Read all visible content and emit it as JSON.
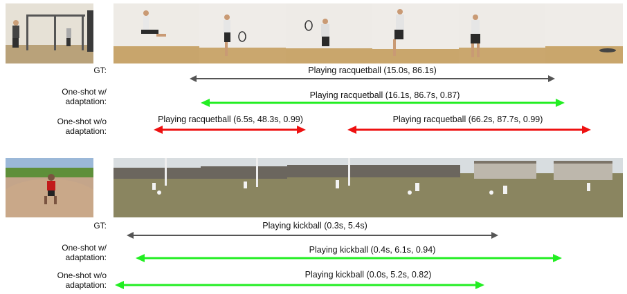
{
  "examples": [
    {
      "rows": [
        {
          "label": "GT:",
          "segments": [
            {
              "text": "Playing racquetball (15.0s, 86.1s)",
              "color": "#555555"
            }
          ]
        },
        {
          "label": "One-shot w/\nadaptation:",
          "segments": [
            {
              "text": "Playing racquetball (16.1s, 86.7s, 0.87)",
              "color": "#22ee22"
            }
          ]
        },
        {
          "label": "One-shot w/o\nadaptation:",
          "segments": [
            {
              "text": "Playing racquetball (6.5s, 48.3s, 0.99)",
              "color": "#ee1111"
            },
            {
              "text": "Playing racquetball (66.2s, 87.7s, 0.99)",
              "color": "#ee1111"
            }
          ]
        }
      ]
    },
    {
      "rows": [
        {
          "label": "GT:",
          "segments": [
            {
              "text": "Playing kickball (0.3s, 5.4s)",
              "color": "#555555"
            }
          ]
        },
        {
          "label": "One-shot w/\nadaptation:",
          "segments": [
            {
              "text": "Playing kickball (0.4s, 6.1s, 0.94)",
              "color": "#22ee22"
            }
          ]
        },
        {
          "label": "One-shot w/o\nadaptation:",
          "segments": [
            {
              "text": "Playing kickball (0.0s, 5.2s, 0.82)",
              "color": "#22ee22"
            }
          ]
        }
      ]
    }
  ]
}
